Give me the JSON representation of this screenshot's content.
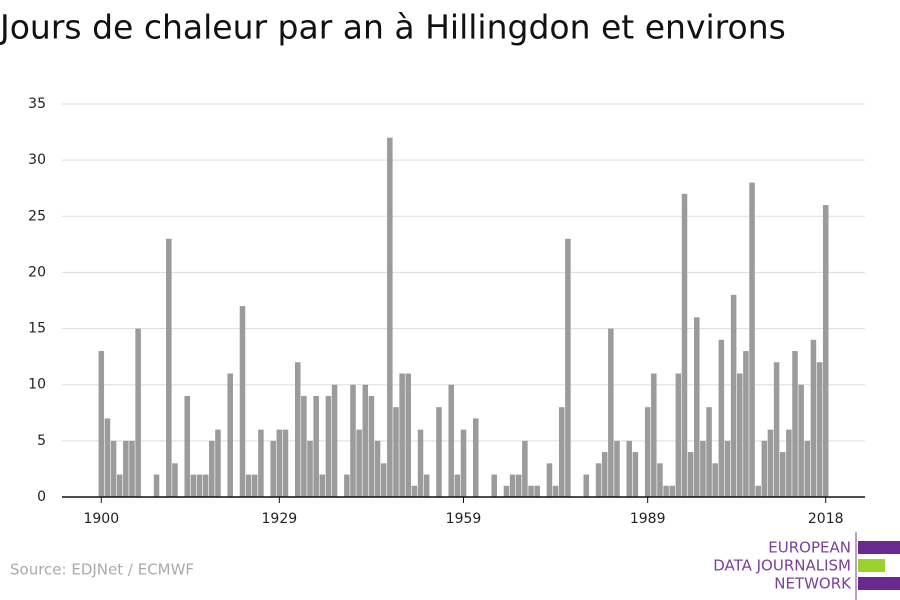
{
  "chart_data": {
    "type": "bar",
    "title": "Jours de chaleur par an à Hillingdon et environs",
    "x": [
      1900,
      1901,
      1902,
      1903,
      1904,
      1905,
      1906,
      1907,
      1908,
      1909,
      1910,
      1911,
      1912,
      1913,
      1914,
      1915,
      1916,
      1917,
      1918,
      1919,
      1920,
      1921,
      1922,
      1923,
      1924,
      1925,
      1926,
      1927,
      1928,
      1929,
      1930,
      1931,
      1932,
      1933,
      1934,
      1935,
      1936,
      1937,
      1938,
      1939,
      1940,
      1941,
      1942,
      1943,
      1944,
      1945,
      1946,
      1947,
      1948,
      1949,
      1950,
      1951,
      1952,
      1953,
      1954,
      1955,
      1956,
      1957,
      1958,
      1959,
      1960,
      1961,
      1962,
      1963,
      1964,
      1965,
      1966,
      1967,
      1968,
      1969,
      1970,
      1971,
      1972,
      1973,
      1974,
      1975,
      1976,
      1977,
      1978,
      1979,
      1980,
      1981,
      1982,
      1983,
      1984,
      1985,
      1986,
      1987,
      1988,
      1989,
      1990,
      1991,
      1992,
      1993,
      1994,
      1995,
      1996,
      1997,
      1998,
      1999,
      2000,
      2001,
      2002,
      2003,
      2004,
      2005,
      2006,
      2007,
      2008,
      2009,
      2010,
      2011,
      2012,
      2013,
      2014,
      2015,
      2016,
      2017,
      2018
    ],
    "values": [
      13,
      7,
      5,
      2,
      5,
      5,
      15,
      0,
      0,
      2,
      0,
      23,
      3,
      0,
      9,
      2,
      2,
      2,
      5,
      6,
      0,
      11,
      0,
      17,
      2,
      2,
      6,
      0,
      5,
      6,
      6,
      0,
      12,
      9,
      5,
      9,
      2,
      9,
      10,
      0,
      2,
      10,
      6,
      10,
      9,
      5,
      3,
      32,
      8,
      11,
      11,
      1,
      6,
      2,
      0,
      8,
      0,
      10,
      2,
      6,
      0,
      7,
      0,
      0,
      2,
      0,
      1,
      2,
      2,
      5,
      1,
      1,
      0,
      3,
      1,
      8,
      23,
      0,
      0,
      2,
      0,
      3,
      4,
      15,
      5,
      0,
      5,
      4,
      0,
      8,
      11,
      3,
      1,
      1,
      11,
      27,
      4,
      16,
      5,
      8,
      3,
      14,
      5,
      18,
      11,
      13,
      28,
      1,
      5,
      6,
      12,
      4,
      6,
      13,
      10,
      5,
      14,
      12,
      26
    ],
    "color": "#9b9b9b",
    "xlim": [
      1893.6,
      2024.4
    ],
    "xticks": [
      1900,
      1929,
      1959,
      1989,
      2018
    ],
    "ylim": [
      0,
      35
    ],
    "yticks": [
      0,
      5,
      10,
      15,
      20,
      25,
      30,
      35
    ],
    "grid": true
  },
  "source": "Source: EDJNet / ECMWF",
  "logo": [
    "EUROPEAN",
    "DATA JOURNALISM",
    "NETWORK"
  ]
}
